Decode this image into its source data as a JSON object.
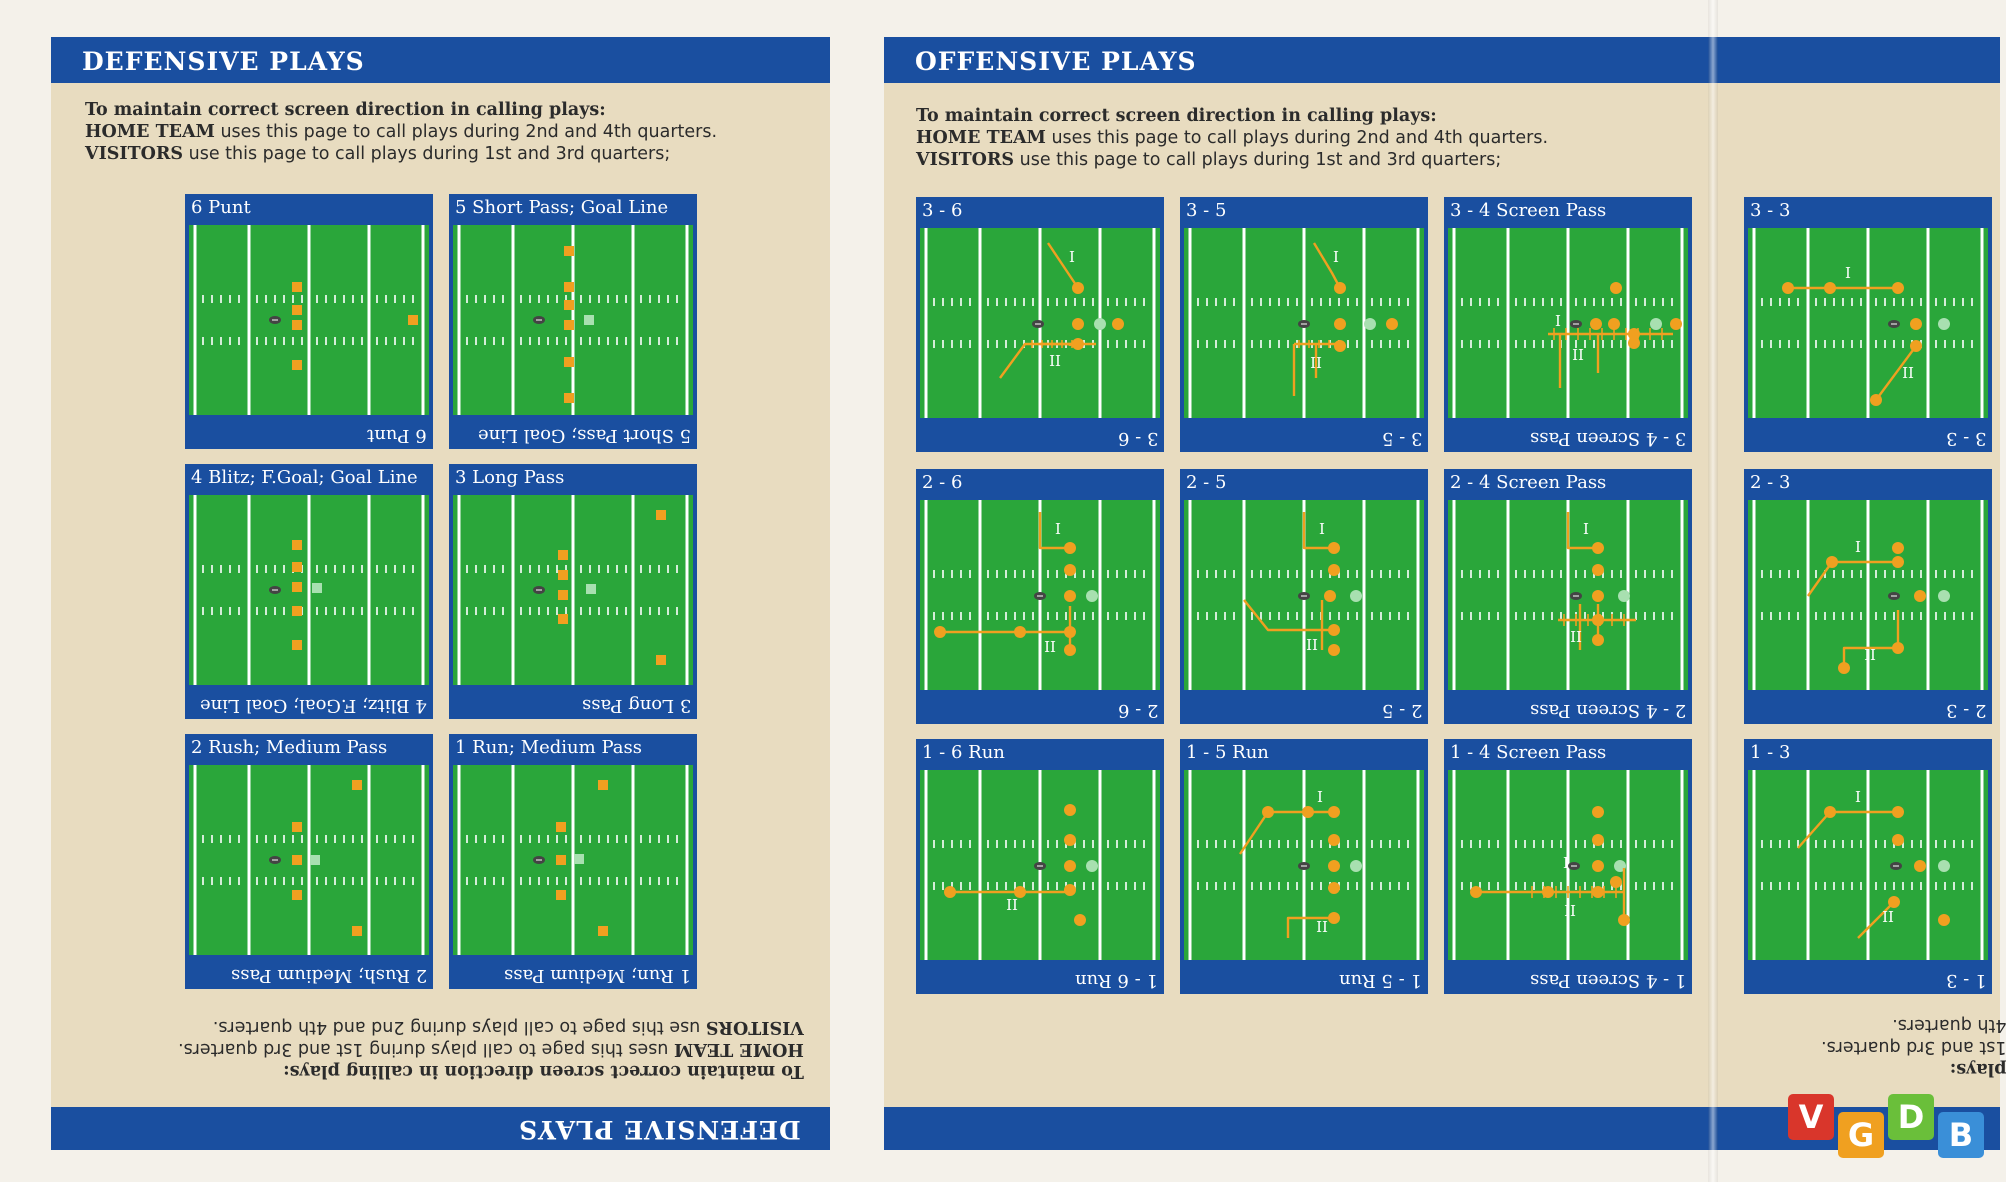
{
  "defensive": {
    "title": "DEFENSIVE PLAYS",
    "intro": {
      "line1": "To maintain correct screen direction in calling plays:",
      "home_label": "HOME TEAM",
      "home_text": " uses this page to call plays during 2nd and 4th quarters.",
      "visitors_label": "VISITORS",
      "visitors_text": " use this page to call plays during 1st and 3rd quarters;"
    },
    "intro_rotated": {
      "line1": "To maintain correct screen direction in calling plays:",
      "home_label": "HOME TEAM",
      "home_text": " uses this page to call plays during 1st and 3rd quarters.",
      "visitors_label": "VISITORS",
      "visitors_text": " use this page to call plays during 2nd and 4th quarters."
    },
    "plays": [
      {
        "label": "6 Punt"
      },
      {
        "label": "5 Short Pass; Goal Line"
      },
      {
        "label": "4 Blitz; F.Goal; Goal Line"
      },
      {
        "label": "3 Long Pass"
      },
      {
        "label": "2 Rush; Medium Pass"
      },
      {
        "label": "1 Run; Medium Pass"
      }
    ]
  },
  "offensive": {
    "title": "OFFENSIVE PLAYS",
    "intro": {
      "line1": "To maintain correct screen direction in calling plays:",
      "home_label": "HOME TEAM",
      "home_text": " uses this page to call plays during 2nd and 4th quarters.",
      "visitors_label": "VISITORS",
      "visitors_text": " use this page to call plays during 1st and 3rd quarters;"
    },
    "intro_rotated_partial": {
      "line1": "plays:",
      "line2": "1st and 3rd quarters.",
      "line3": "4th quarters."
    },
    "plays": [
      {
        "label": "3 - 6"
      },
      {
        "label": "3 - 5"
      },
      {
        "label": "3 - 4 Screen Pass"
      },
      {
        "label": "3 - 3"
      },
      {
        "label": "2 - 6"
      },
      {
        "label": "2 - 5"
      },
      {
        "label": "2 - 4 Screen Pass"
      },
      {
        "label": "2 - 3"
      },
      {
        "label": "1 - 6 Run"
      },
      {
        "label": "1 - 5 Run"
      },
      {
        "label": "1 - 4 Screen Pass"
      },
      {
        "label": "1 - 3"
      }
    ],
    "route_labels": {
      "one": "I",
      "two": "II"
    }
  },
  "watermark": {
    "letters": [
      "V",
      "G",
      "D",
      "B"
    ],
    "colors": [
      "#d9362b",
      "#f0a020",
      "#6abf3a",
      "#3a8fd8"
    ]
  },
  "colors": {
    "field": "#2aa63a",
    "banner": "#1a4fa0",
    "paper": "#e8dcc0",
    "player": "#f0a020",
    "route": "#f0a020",
    "ball": "#444444",
    "marker": "#a8e0b0"
  }
}
